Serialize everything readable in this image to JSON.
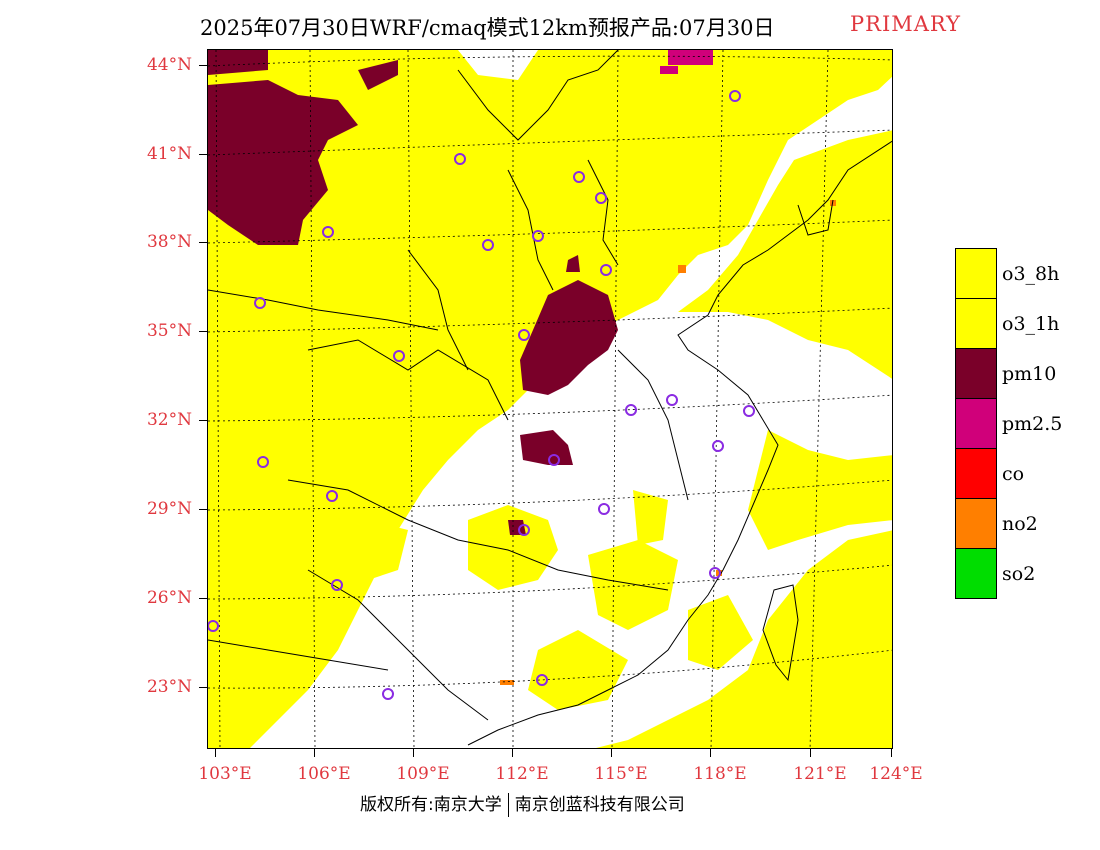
{
  "title": "2025年07月30日WRF/cmaq模式12km预报产品:07月30日",
  "mode_badge": "PRIMARY",
  "map": {
    "latitude_labels": [
      "44°N",
      "41°N",
      "38°N",
      "35°N",
      "32°N",
      "29°N",
      "26°N",
      "23°N"
    ],
    "longitude_labels": [
      "103°E",
      "106°E",
      "109°E",
      "112°E",
      "115°E",
      "118°E",
      "121°E",
      "124°E"
    ],
    "station_marker_color": "#8a2be2"
  },
  "legend": {
    "items": [
      {
        "label": "o3_8h",
        "color": "#ffff00"
      },
      {
        "label": "o3_1h",
        "color": "#ffff00"
      },
      {
        "label": "pm10",
        "color": "#7a0029"
      },
      {
        "label": "pm2.5",
        "color": "#d0007a"
      },
      {
        "label": "co",
        "color": "#ff0000"
      },
      {
        "label": "no2",
        "color": "#ff7f00"
      },
      {
        "label": "so2",
        "color": "#00dd00"
      }
    ]
  },
  "footer": {
    "copyright_left": "版权所有:南京大学",
    "copyright_right": "南京创蓝科技有限公司"
  }
}
